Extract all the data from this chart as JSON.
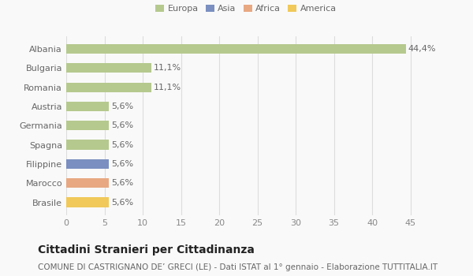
{
  "countries": [
    "Albania",
    "Bulgaria",
    "Romania",
    "Austria",
    "Germania",
    "Spagna",
    "Filippine",
    "Marocco",
    "Brasile"
  ],
  "values": [
    44.4,
    11.1,
    11.1,
    5.6,
    5.6,
    5.6,
    5.6,
    5.6,
    5.6
  ],
  "labels": [
    "44,4%",
    "11,1%",
    "11,1%",
    "5,6%",
    "5,6%",
    "5,6%",
    "5,6%",
    "5,6%",
    "5,6%"
  ],
  "colors": [
    "#b5c98e",
    "#b5c98e",
    "#b5c98e",
    "#b5c98e",
    "#b5c98e",
    "#b5c98e",
    "#7b8fc0",
    "#e8a882",
    "#f0c95a"
  ],
  "legend": [
    {
      "label": "Europa",
      "color": "#b5c98e"
    },
    {
      "label": "Asia",
      "color": "#7b8fc0"
    },
    {
      "label": "Africa",
      "color": "#e8a882"
    },
    {
      "label": "America",
      "color": "#f0c95a"
    }
  ],
  "xlim": [
    0,
    47
  ],
  "xticks": [
    0,
    5,
    10,
    15,
    20,
    25,
    30,
    35,
    40,
    45
  ],
  "title": "Cittadini Stranieri per Cittadinanza",
  "subtitle": "COMUNE DI CASTRIGNANO DE’ GRECI (LE) - Dati ISTAT al 1° gennaio - Elaborazione TUTTITALIA.IT",
  "bg_color": "#f9f9f9",
  "grid_color": "#dddddd",
  "bar_height": 0.5,
  "label_fontsize": 8,
  "tick_fontsize": 8,
  "title_fontsize": 10,
  "subtitle_fontsize": 7.5
}
